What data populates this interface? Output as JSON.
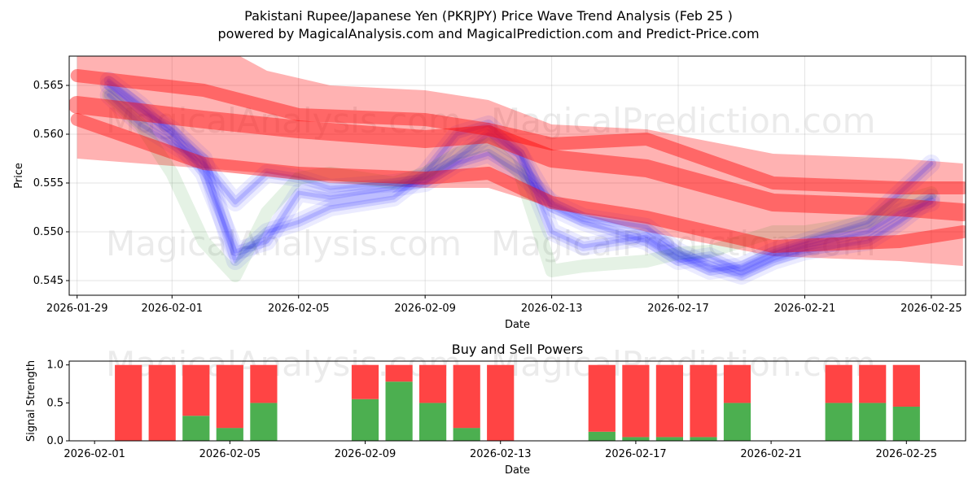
{
  "title_line1": "Pakistani Rupee/Japanese Yen (PKRJPY) Price Wave Trend Analysis (Feb 25 )",
  "title_line2": "powered by MagicalAnalysis.com and MagicalPrediction.com and Predict-Price.com",
  "watermarks": [
    "MagicalAnalysis.com",
    "MagicalPrediction.com"
  ],
  "colors": {
    "red": "#ff0000",
    "blue": "#0000ff",
    "green": "#008000",
    "buy": "#4caf50",
    "sell": "#ff4444"
  },
  "chart_data": [
    {
      "type": "line",
      "title": "",
      "xlabel": "Date",
      "ylabel": "Price",
      "ylim": [
        0.5435,
        0.568
      ],
      "xlim": [
        "2026-01-28T18:00",
        "2026-02-26T02:00"
      ],
      "x_ticks": [
        "2026-01-29",
        "2026-02-01",
        "2026-02-05",
        "2026-02-09",
        "2026-02-13",
        "2026-02-17",
        "2026-02-21",
        "2026-02-25"
      ],
      "y_ticks": [
        0.545,
        0.55,
        0.555,
        0.56,
        0.565
      ],
      "grid": true,
      "series": [
        {
          "name": "price-wave-1",
          "color": "blue",
          "x": [
            "2026-01-30",
            "2026-01-31",
            "2026-02-01",
            "2026-02-02",
            "2026-02-03",
            "2026-02-04",
            "2026-02-05",
            "2026-02-06",
            "2026-02-08",
            "2026-02-09",
            "2026-02-10",
            "2026-02-11",
            "2026-02-12",
            "2026-02-13",
            "2026-02-14",
            "2026-02-16",
            "2026-02-17",
            "2026-02-18",
            "2026-02-19",
            "2026-02-20",
            "2026-02-21",
            "2026-02-23",
            "2026-02-24",
            "2026-02-25"
          ],
          "values": [
            0.5655,
            0.563,
            0.56,
            0.556,
            0.548,
            0.549,
            0.554,
            0.5535,
            0.5545,
            0.555,
            0.557,
            0.558,
            0.556,
            0.553,
            0.5515,
            0.5505,
            0.548,
            0.5465,
            0.5455,
            0.547,
            0.548,
            0.549,
            0.551,
            0.5535
          ]
        },
        {
          "name": "price-wave-2",
          "color": "blue",
          "x": [
            "2026-01-30",
            "2026-01-31",
            "2026-02-01",
            "2026-02-02",
            "2026-02-03",
            "2026-02-04",
            "2026-02-05",
            "2026-02-06",
            "2026-02-08",
            "2026-02-09",
            "2026-02-10",
            "2026-02-11",
            "2026-02-12",
            "2026-02-13",
            "2026-02-14",
            "2026-02-16",
            "2026-02-17",
            "2026-02-18",
            "2026-02-19",
            "2026-02-20",
            "2026-02-21",
            "2026-02-23",
            "2026-02-24",
            "2026-02-25"
          ],
          "values": [
            0.564,
            0.561,
            0.559,
            0.557,
            0.553,
            0.556,
            0.5555,
            0.5545,
            0.555,
            0.5555,
            0.5575,
            0.56,
            0.558,
            0.5525,
            0.551,
            0.549,
            0.547,
            0.5475,
            0.546,
            0.5475,
            0.5485,
            0.55,
            0.552,
            0.553
          ]
        },
        {
          "name": "price-wave-3",
          "color": "blue",
          "x": [
            "2026-01-30",
            "2026-01-31",
            "2026-02-01",
            "2026-02-02",
            "2026-02-03",
            "2026-02-04",
            "2026-02-05",
            "2026-02-06",
            "2026-02-08",
            "2026-02-09",
            "2026-02-10",
            "2026-02-11",
            "2026-02-12",
            "2026-02-13",
            "2026-02-14",
            "2026-02-16",
            "2026-02-17",
            "2026-02-18",
            "2026-02-19",
            "2026-02-20",
            "2026-02-21",
            "2026-02-23",
            "2026-02-24",
            "2026-02-25"
          ],
          "values": [
            0.565,
            0.5625,
            0.5605,
            0.5575,
            0.547,
            0.55,
            0.551,
            0.5525,
            0.5535,
            0.556,
            0.56,
            0.561,
            0.558,
            0.55,
            0.5485,
            0.5495,
            0.5475,
            0.546,
            0.5465,
            0.548,
            0.549,
            0.551,
            0.554,
            0.557
          ]
        },
        {
          "name": "price-wave-4",
          "color": "green",
          "x": [
            "2026-01-30",
            "2026-01-31",
            "2026-02-01",
            "2026-02-02",
            "2026-02-03",
            "2026-02-04",
            "2026-02-05",
            "2026-02-06",
            "2026-02-08",
            "2026-02-09",
            "2026-02-10",
            "2026-02-11",
            "2026-02-12",
            "2026-02-13",
            "2026-02-14",
            "2026-02-16",
            "2026-02-17",
            "2026-02-18",
            "2026-02-19",
            "2026-02-20",
            "2026-02-21",
            "2026-02-23",
            "2026-02-24",
            "2026-02-25"
          ],
          "values": [
            0.564,
            0.561,
            0.556,
            0.549,
            0.5455,
            0.552,
            0.5555,
            0.556,
            0.555,
            0.556,
            0.558,
            0.559,
            0.556,
            0.546,
            0.5465,
            0.547,
            0.5478,
            0.548,
            0.549,
            0.55,
            0.55,
            0.551,
            0.553,
            0.554
          ]
        },
        {
          "name": "trend-center",
          "color": "red",
          "x": [
            "2026-01-29",
            "2026-02-02",
            "2026-02-05",
            "2026-02-09",
            "2026-02-11",
            "2026-02-13",
            "2026-02-16",
            "2026-02-20",
            "2026-02-24",
            "2026-02-26"
          ],
          "values": [
            0.563,
            0.5615,
            0.5605,
            0.5595,
            0.56,
            0.5575,
            0.5565,
            0.553,
            0.5525,
            0.552
          ]
        },
        {
          "name": "trend-upper",
          "color": "red",
          "x": [
            "2026-01-29",
            "2026-02-02",
            "2026-02-05",
            "2026-02-09",
            "2026-02-11",
            "2026-02-13",
            "2026-02-16",
            "2026-02-20",
            "2026-02-24",
            "2026-02-26"
          ],
          "values": [
            0.566,
            0.5645,
            0.562,
            0.5615,
            0.5605,
            0.559,
            0.5595,
            0.555,
            0.5545,
            0.5545
          ]
        },
        {
          "name": "trend-lower",
          "color": "red",
          "x": [
            "2026-01-29",
            "2026-02-02",
            "2026-02-05",
            "2026-02-09",
            "2026-02-11",
            "2026-02-13",
            "2026-02-16",
            "2026-02-20",
            "2026-02-24",
            "2026-02-26"
          ],
          "values": [
            0.5615,
            0.557,
            0.556,
            0.5555,
            0.556,
            0.553,
            0.5515,
            0.5485,
            0.549,
            0.55
          ]
        }
      ],
      "bands": [
        {
          "name": "trend-outer-band",
          "color": "red",
          "x": [
            "2026-01-29",
            "2026-02-02",
            "2026-02-04",
            "2026-02-06",
            "2026-02-09",
            "2026-02-11",
            "2026-02-13",
            "2026-02-16",
            "2026-02-20",
            "2026-02-24",
            "2026-02-26"
          ],
          "upper": [
            0.5695,
            0.57,
            0.5665,
            0.565,
            0.5645,
            0.5635,
            0.561,
            0.5605,
            0.558,
            0.5575,
            0.557
          ],
          "lower": [
            0.5575,
            0.5565,
            0.556,
            0.555,
            0.5545,
            0.5545,
            0.5525,
            0.55,
            0.5475,
            0.547,
            0.5465
          ]
        }
      ]
    },
    {
      "type": "bar",
      "title": "Buy and Sell Powers",
      "xlabel": "Date",
      "ylabel": "Signal Strength",
      "ylim": [
        0,
        1.05
      ],
      "y_ticks": [
        0.0,
        0.5,
        1.0
      ],
      "x_ticks": [
        "2026-02-01",
        "2026-02-05",
        "2026-02-09",
        "2026-02-13",
        "2026-02-17",
        "2026-02-21",
        "2026-02-25"
      ],
      "categories": [
        "2026-02-02",
        "2026-02-03",
        "2026-02-04",
        "2026-02-05",
        "2026-02-06",
        "2026-02-09",
        "2026-02-10",
        "2026-02-11",
        "2026-02-12",
        "2026-02-13",
        "2026-02-16",
        "2026-02-17",
        "2026-02-18",
        "2026-02-19",
        "2026-02-20",
        "2026-02-23",
        "2026-02-24",
        "2026-02-25"
      ],
      "series": [
        {
          "name": "Buy",
          "color": "buy",
          "values": [
            0,
            0,
            0.33,
            0.17,
            0.5,
            0.55,
            0.78,
            0.5,
            0.17,
            0,
            0.12,
            0.05,
            0.05,
            0.05,
            0.5,
            0.5,
            0.5,
            0.45
          ]
        },
        {
          "name": "Sell",
          "color": "sell",
          "values": [
            1,
            1,
            0.67,
            0.83,
            0.5,
            0.45,
            0.22,
            0.5,
            0.83,
            1,
            0.88,
            0.95,
            0.95,
            0.95,
            0.5,
            0.5,
            0.5,
            0.55
          ]
        }
      ]
    }
  ]
}
